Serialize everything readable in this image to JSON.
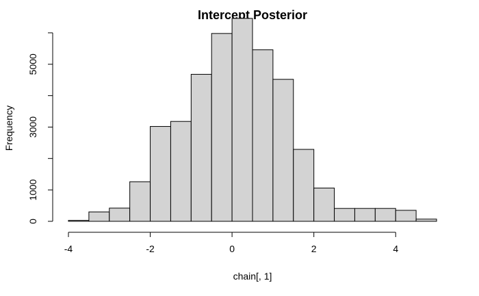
{
  "chart_data": {
    "type": "bar",
    "title": "Intercept Posterior",
    "xlabel": "chain[, 1]",
    "ylabel": "Frequency",
    "bin_edges": [
      -4,
      -3.5,
      -3,
      -2.5,
      -2,
      -1.5,
      -1,
      -0.5,
      0,
      0.5,
      1,
      1.5,
      2,
      2.5,
      3,
      3.5,
      4,
      4.5,
      5
    ],
    "values": [
      30,
      300,
      420,
      1260,
      3020,
      3180,
      4680,
      5980,
      6460,
      5460,
      4520,
      2290,
      1060,
      410,
      410,
      410,
      350,
      70
    ],
    "xlim": [
      -4,
      5
    ],
    "ylim": [
      0,
      6500
    ],
    "x_ticks": [
      -4,
      -2,
      0,
      2,
      4
    ],
    "x_tick_labels": [
      "-4",
      "-2",
      "0",
      "2",
      "4"
    ],
    "y_ticks": [
      0,
      1000,
      3000,
      5000
    ],
    "y_tick_labels": [
      "0",
      "1000",
      "3000",
      "5000"
    ],
    "bar_color": "#d3d3d3",
    "grid": false
  }
}
